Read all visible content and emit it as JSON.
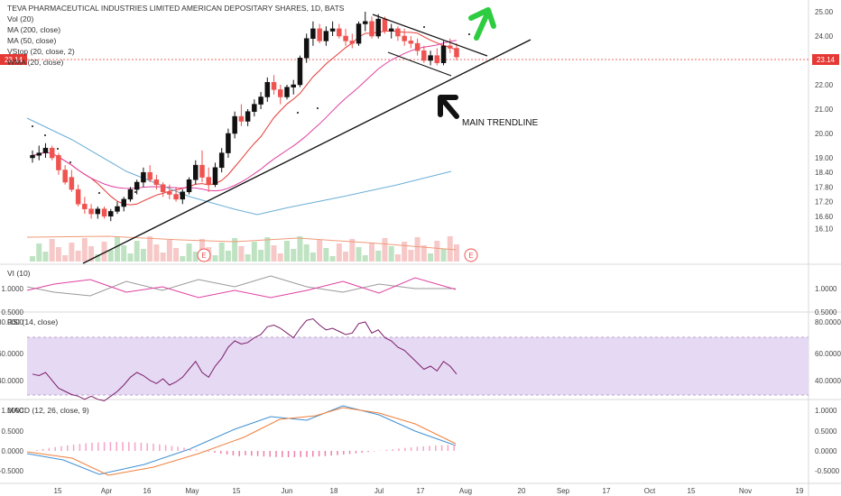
{
  "chart_data": {
    "type": "candlestick",
    "title": "TEVA PHARMACEUTICAL INDUSTRIES LIMITED AMERICAN DEPOSITARY SHARES, 1D, BATS",
    "indicators_main": [
      "Vol (20)",
      "MA (200, close)",
      "MA (50, close)",
      "VStop (20, close, 2)",
      "WMA (20, close)"
    ],
    "last_price_label": "23.14",
    "annotation": "MAIN TRENDLINE",
    "earnings_marker": "E",
    "price_axis": {
      "ticks": [
        "25.00",
        "24.00",
        "23.00",
        "22.00",
        "21.00",
        "20.00",
        "19.00",
        "18.40",
        "17.80",
        "17.20",
        "16.60",
        "16.10"
      ]
    },
    "time_axis": [
      "15",
      "Apr",
      "16",
      "May",
      "15",
      "Jun",
      "18",
      "Jul",
      "17",
      "Aug",
      "20",
      "Sep",
      "17",
      "Oct",
      "15",
      "Nov",
      "19"
    ],
    "candles": [
      {
        "o": 19.0,
        "h": 19.3,
        "l": 18.8,
        "c": 19.1
      },
      {
        "o": 19.1,
        "h": 19.5,
        "l": 18.9,
        "c": 19.2
      },
      {
        "o": 19.2,
        "h": 19.6,
        "l": 19.0,
        "c": 19.4
      },
      {
        "o": 19.4,
        "h": 19.5,
        "l": 18.9,
        "c": 19.0
      },
      {
        "o": 19.1,
        "h": 19.2,
        "l": 18.3,
        "c": 18.5
      },
      {
        "o": 18.5,
        "h": 18.7,
        "l": 17.9,
        "c": 18.0
      },
      {
        "o": 18.2,
        "h": 18.5,
        "l": 17.6,
        "c": 17.7
      },
      {
        "o": 17.7,
        "h": 17.9,
        "l": 17.0,
        "c": 17.1
      },
      {
        "o": 17.1,
        "h": 17.4,
        "l": 16.7,
        "c": 16.9
      },
      {
        "o": 16.9,
        "h": 17.1,
        "l": 16.5,
        "c": 16.7
      },
      {
        "o": 16.7,
        "h": 17.0,
        "l": 16.5,
        "c": 16.9
      },
      {
        "o": 16.9,
        "h": 17.0,
        "l": 16.5,
        "c": 16.6
      },
      {
        "o": 16.6,
        "h": 16.9,
        "l": 16.4,
        "c": 16.8
      },
      {
        "o": 16.8,
        "h": 17.2,
        "l": 16.7,
        "c": 17.0
      },
      {
        "o": 17.0,
        "h": 17.4,
        "l": 16.8,
        "c": 17.3
      },
      {
        "o": 17.3,
        "h": 17.8,
        "l": 17.2,
        "c": 17.7
      },
      {
        "o": 17.7,
        "h": 18.1,
        "l": 17.5,
        "c": 18.0
      },
      {
        "o": 18.0,
        "h": 18.6,
        "l": 17.8,
        "c": 18.4
      },
      {
        "o": 18.4,
        "h": 18.7,
        "l": 18.0,
        "c": 18.1
      },
      {
        "o": 18.1,
        "h": 18.3,
        "l": 17.7,
        "c": 17.9
      },
      {
        "o": 17.9,
        "h": 18.0,
        "l": 17.4,
        "c": 17.6
      },
      {
        "o": 17.6,
        "h": 17.9,
        "l": 17.3,
        "c": 17.5
      },
      {
        "o": 17.5,
        "h": 17.8,
        "l": 17.2,
        "c": 17.3
      },
      {
        "o": 17.3,
        "h": 17.7,
        "l": 17.1,
        "c": 17.6
      },
      {
        "o": 17.6,
        "h": 18.2,
        "l": 17.5,
        "c": 18.1
      },
      {
        "o": 18.1,
        "h": 18.9,
        "l": 17.9,
        "c": 18.7
      },
      {
        "o": 18.7,
        "h": 19.3,
        "l": 18.0,
        "c": 18.2
      },
      {
        "o": 18.2,
        "h": 18.6,
        "l": 17.6,
        "c": 17.9
      },
      {
        "o": 17.9,
        "h": 18.8,
        "l": 17.8,
        "c": 18.6
      },
      {
        "o": 18.6,
        "h": 19.4,
        "l": 18.4,
        "c": 19.2
      },
      {
        "o": 19.2,
        "h": 20.2,
        "l": 19.0,
        "c": 20.0
      },
      {
        "o": 20.0,
        "h": 20.9,
        "l": 19.8,
        "c": 20.7
      },
      {
        "o": 20.7,
        "h": 21.2,
        "l": 20.3,
        "c": 20.5
      },
      {
        "o": 20.5,
        "h": 21.0,
        "l": 20.3,
        "c": 20.9
      },
      {
        "o": 20.9,
        "h": 21.4,
        "l": 20.7,
        "c": 21.2
      },
      {
        "o": 21.2,
        "h": 21.7,
        "l": 21.0,
        "c": 21.5
      },
      {
        "o": 21.5,
        "h": 22.3,
        "l": 21.3,
        "c": 22.1
      },
      {
        "o": 22.1,
        "h": 22.4,
        "l": 21.6,
        "c": 21.8
      },
      {
        "o": 21.8,
        "h": 22.0,
        "l": 21.2,
        "c": 21.5
      },
      {
        "o": 21.5,
        "h": 22.0,
        "l": 21.4,
        "c": 21.9
      },
      {
        "o": 21.9,
        "h": 22.2,
        "l": 21.6,
        "c": 22.0
      },
      {
        "o": 22.0,
        "h": 23.2,
        "l": 21.9,
        "c": 23.1
      },
      {
        "o": 23.1,
        "h": 24.1,
        "l": 22.9,
        "c": 23.9
      },
      {
        "o": 23.9,
        "h": 24.6,
        "l": 23.6,
        "c": 24.3
      },
      {
        "o": 24.3,
        "h": 24.5,
        "l": 23.7,
        "c": 23.8
      },
      {
        "o": 23.8,
        "h": 24.4,
        "l": 23.6,
        "c": 24.2
      },
      {
        "o": 24.2,
        "h": 24.6,
        "l": 24.0,
        "c": 24.3
      },
      {
        "o": 24.3,
        "h": 24.5,
        "l": 23.9,
        "c": 24.0
      },
      {
        "o": 24.0,
        "h": 24.3,
        "l": 23.6,
        "c": 23.8
      },
      {
        "o": 23.8,
        "h": 24.1,
        "l": 23.5,
        "c": 23.7
      },
      {
        "o": 23.7,
        "h": 24.6,
        "l": 23.6,
        "c": 24.5
      },
      {
        "o": 24.5,
        "h": 25.0,
        "l": 24.2,
        "c": 24.6
      },
      {
        "o": 24.6,
        "h": 24.8,
        "l": 23.9,
        "c": 24.0
      },
      {
        "o": 24.0,
        "h": 24.9,
        "l": 23.9,
        "c": 24.7
      },
      {
        "o": 24.7,
        "h": 24.8,
        "l": 24.1,
        "c": 24.2
      },
      {
        "o": 24.2,
        "h": 24.5,
        "l": 23.9,
        "c": 24.3
      },
      {
        "o": 24.3,
        "h": 24.4,
        "l": 23.8,
        "c": 24.0
      },
      {
        "o": 24.0,
        "h": 24.3,
        "l": 23.6,
        "c": 23.8
      },
      {
        "o": 23.8,
        "h": 24.0,
        "l": 23.5,
        "c": 23.7
      },
      {
        "o": 23.7,
        "h": 23.9,
        "l": 23.2,
        "c": 23.4
      },
      {
        "o": 23.4,
        "h": 23.6,
        "l": 22.9,
        "c": 23.0
      },
      {
        "o": 23.0,
        "h": 23.4,
        "l": 22.8,
        "c": 23.2
      },
      {
        "o": 23.2,
        "h": 23.5,
        "l": 22.8,
        "c": 22.9
      },
      {
        "o": 22.9,
        "h": 23.8,
        "l": 22.8,
        "c": 23.6
      },
      {
        "o": 23.6,
        "h": 23.9,
        "l": 23.3,
        "c": 23.5
      },
      {
        "o": 23.5,
        "h": 23.7,
        "l": 23.0,
        "c": 23.14
      }
    ],
    "sub_panels": [
      {
        "name": "VI (10)",
        "ticks": [
          "1.0000",
          "0.5000"
        ]
      },
      {
        "name": "RSI (14, close)",
        "ticks": [
          "80.0000",
          "60.0000",
          "40.0000"
        ]
      },
      {
        "name": "MACD (12, 26, close, 9)",
        "ticks": [
          "1.0000",
          "0.5000",
          "0.0000",
          "-0.5000"
        ]
      }
    ],
    "rsi": [
      47,
      46,
      48,
      43,
      38,
      36,
      34,
      33,
      31,
      33,
      31,
      30,
      33,
      36,
      40,
      45,
      48,
      46,
      43,
      41,
      44,
      40,
      42,
      45,
      50,
      55,
      48,
      45,
      52,
      57,
      64,
      68,
      66,
      67,
      70,
      72,
      77,
      78,
      76,
      73,
      70,
      76,
      81,
      82,
      78,
      75,
      76,
      74,
      72,
      73,
      79,
      80,
      73,
      75,
      70,
      68,
      64,
      62,
      58,
      54,
      50,
      52,
      49,
      55,
      52,
      47
    ]
  },
  "colors": {
    "bull": "#ffffff",
    "bear": "#ef5350",
    "ma200": "#6aaed6",
    "ma50": "#e040a0",
    "wma": "#e53935",
    "rsi_band": "#e6d9f3",
    "rsi_line": "#7b1f6a",
    "macd": "#3f8fd2",
    "signal": "#f07f3c",
    "arrow_up": "#2ecc40",
    "last_price": "#e53935"
  }
}
